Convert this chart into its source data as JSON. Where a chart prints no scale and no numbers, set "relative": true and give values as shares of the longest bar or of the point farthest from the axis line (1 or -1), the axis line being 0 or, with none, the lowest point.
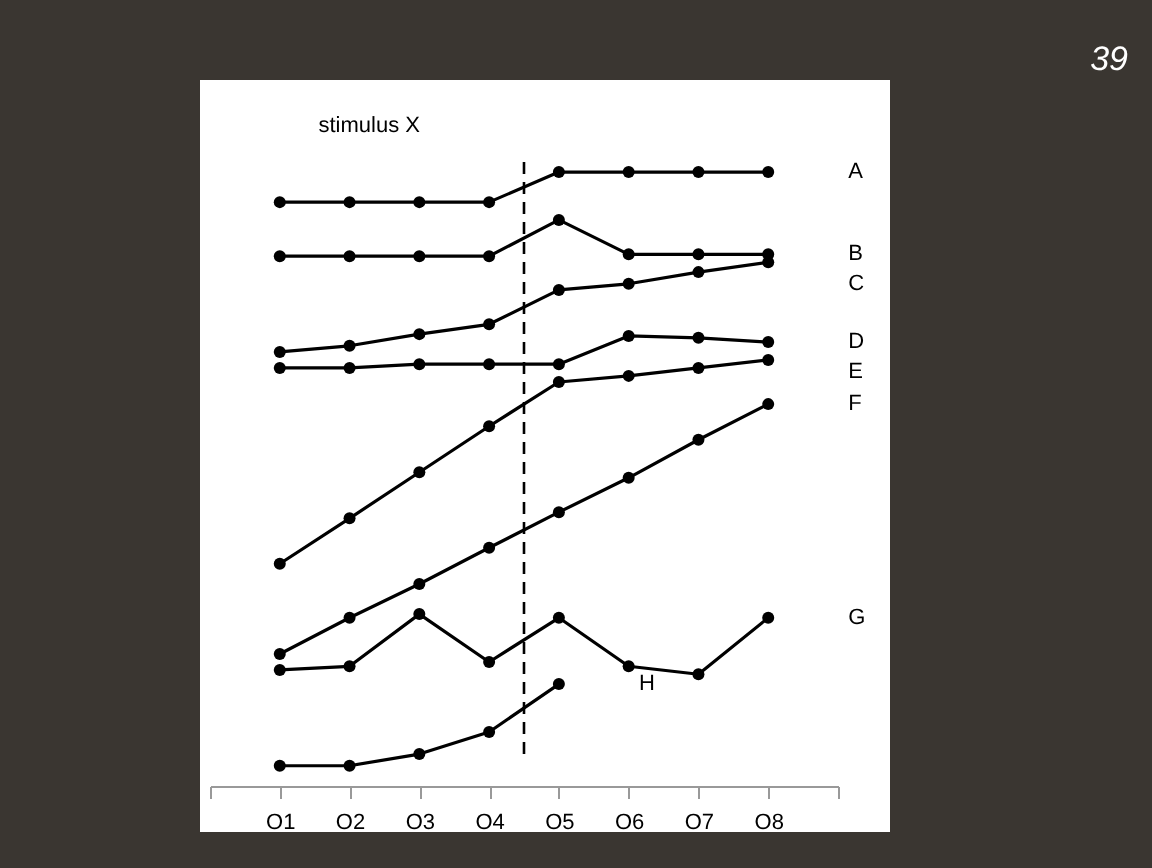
{
  "chart_data": {
    "type": "line",
    "relative": true,
    "categories": [
      "O1",
      "O2",
      "O3",
      "O4",
      "O5",
      "O6",
      "O7",
      "O8"
    ],
    "series": [
      {
        "name": "A",
        "color": "#000000",
        "values": [
          0.951,
          0.951,
          0.951,
          0.951,
          1,
          1,
          1,
          1
        ]
      },
      {
        "name": "B",
        "color": "#000000",
        "values": [
          0.863,
          0.863,
          0.863,
          0.863,
          0.922,
          0.866,
          0.866,
          0.866
        ]
      },
      {
        "name": "C",
        "color": "#000000",
        "values": [
          0.707,
          0.717,
          0.736,
          0.752,
          0.808,
          0.818,
          0.837,
          0.853
        ]
      },
      {
        "name": "D",
        "color": "#000000",
        "values": [
          0.681,
          0.681,
          0.687,
          0.687,
          0.687,
          0.733,
          0.73,
          0.723
        ]
      },
      {
        "name": "E",
        "color": "#000000",
        "values": [
          0.362,
          0.436,
          0.511,
          0.586,
          0.658,
          0.668,
          0.681,
          0.694
        ]
      },
      {
        "name": "F",
        "color": "#000000",
        "values": [
          0.215,
          0.274,
          0.329,
          0.388,
          0.446,
          0.502,
          0.564,
          0.622
        ]
      },
      {
        "name": "G",
        "color": "#000000",
        "values": [
          0.189,
          0.195,
          0.28,
          0.202,
          0.274,
          0.195,
          0.182,
          0.274
        ]
      },
      {
        "name": "H",
        "color": "#000000",
        "values": [
          0.033,
          0.033,
          0.052,
          0.088,
          0.166,
          null,
          null,
          null
        ]
      }
    ],
    "marker": "circle",
    "line_style": "solid",
    "grid": false,
    "legend": false,
    "annotations": [
      "stimulus X",
      "39"
    ]
  }
}
